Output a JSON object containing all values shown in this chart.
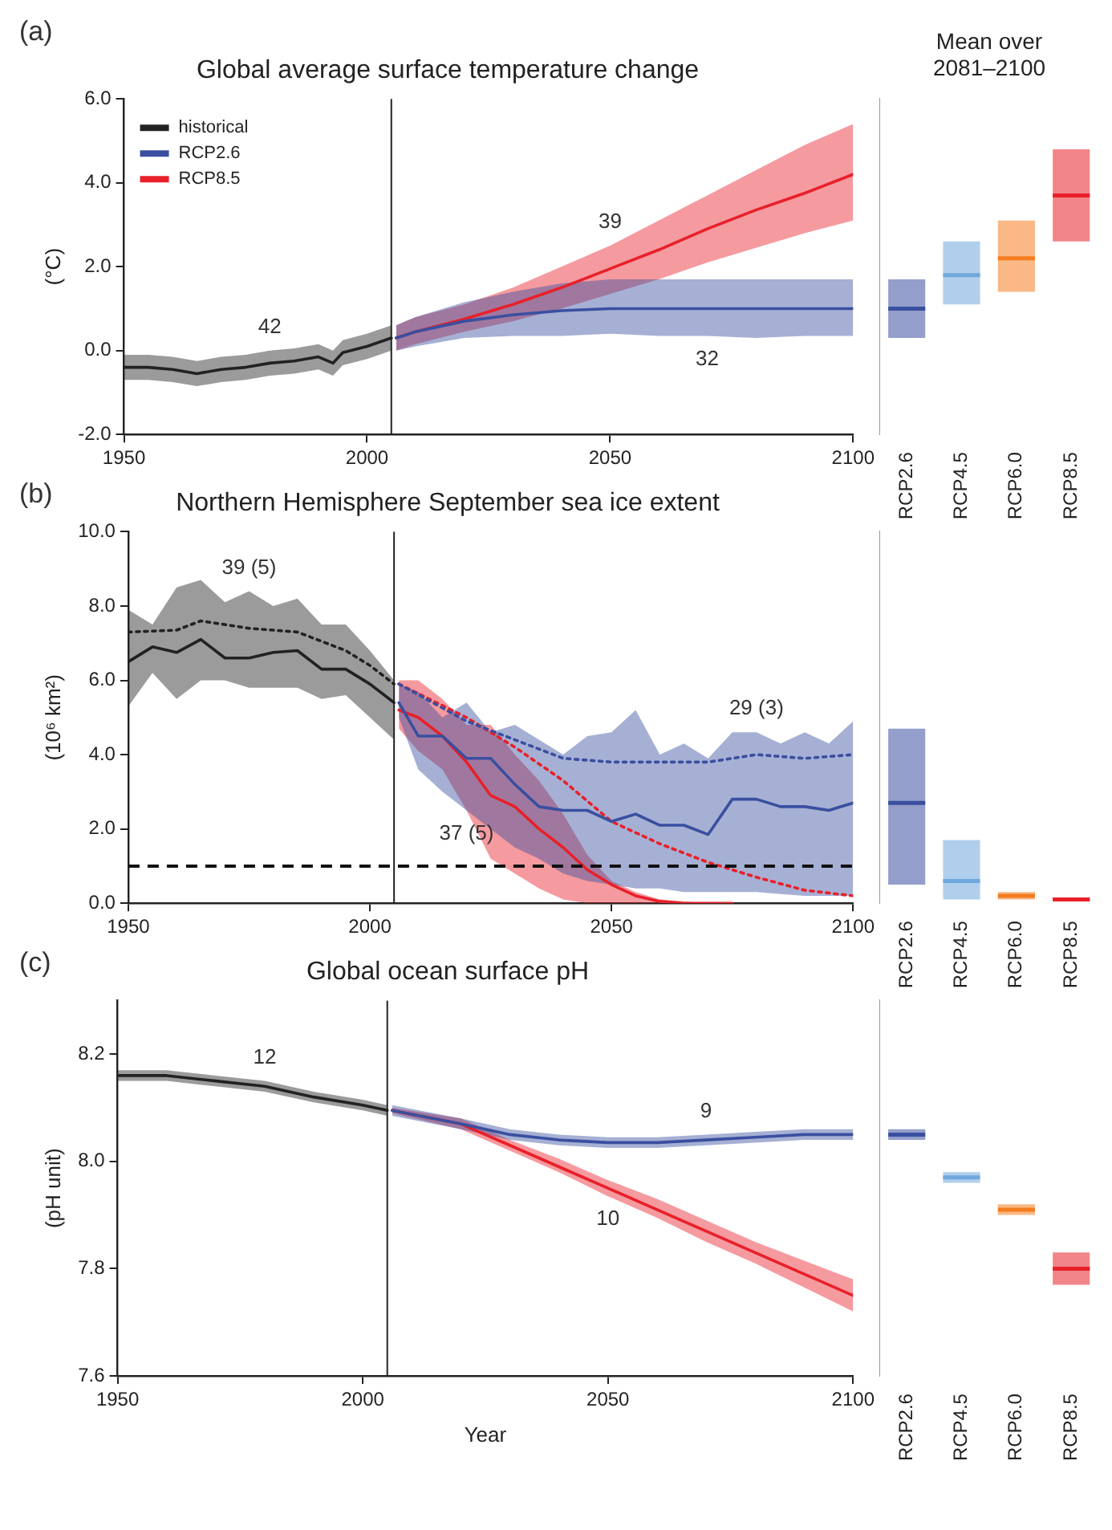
{
  "chart_data": [
    {
      "type": "line",
      "title": "Global average surface temperature change",
      "ylabel": "(°C)",
      "xlim": [
        1950,
        2100
      ],
      "xticks": [
        1950,
        2000,
        2050,
        2100
      ],
      "ylim": [
        -2,
        6
      ],
      "yticks": [
        {
          "value": -2,
          "label": "-2.0"
        },
        {
          "value": 0,
          "label": "0.0"
        },
        {
          "value": 2,
          "label": "2.0"
        },
        {
          "value": 4,
          "label": "4.0"
        },
        {
          "value": 6,
          "label": "6.0"
        }
      ],
      "legend": "top left",
      "marker": "none",
      "ref_lines": [
        {
          "axis": "x",
          "value": 2005,
          "color": "#222222",
          "line_style": "solid"
        }
      ],
      "annotations": [
        "(a)",
        {
          "text": "42",
          "x": 1980,
          "y": 0.0
        },
        {
          "text": "39",
          "x": 2050,
          "y": 2.5
        },
        {
          "text": "32",
          "x": 2070,
          "y": 0.35
        }
      ],
      "series": [
        {
          "name": "historical",
          "color": "#222222",
          "x": [
            1950,
            1955,
            1960,
            1965,
            1970,
            1975,
            1980,
            1985,
            1990,
            1993,
            1995,
            2000,
            2005
          ],
          "values": [
            -0.4,
            -0.4,
            -0.45,
            -0.55,
            -0.45,
            -0.4,
            -0.3,
            -0.25,
            -0.15,
            -0.3,
            -0.05,
            0.1,
            0.3
          ],
          "lower": [
            -0.7,
            -0.7,
            -0.75,
            -0.85,
            -0.75,
            -0.7,
            -0.6,
            -0.55,
            -0.45,
            -0.6,
            -0.35,
            -0.2,
            0.0
          ],
          "upper": [
            -0.1,
            -0.1,
            -0.15,
            -0.25,
            -0.15,
            -0.1,
            0.0,
            0.05,
            0.15,
            0.0,
            0.25,
            0.4,
            0.6
          ]
        },
        {
          "name": "RCP2.6",
          "color": "#3a4fa0",
          "x": [
            2006,
            2010,
            2020,
            2030,
            2040,
            2050,
            2060,
            2070,
            2080,
            2090,
            2100
          ],
          "values": [
            0.3,
            0.45,
            0.7,
            0.85,
            0.95,
            1.0,
            1.0,
            1.0,
            1.0,
            1.0,
            1.0
          ],
          "lower": [
            0.0,
            0.1,
            0.3,
            0.35,
            0.35,
            0.4,
            0.35,
            0.35,
            0.3,
            0.35,
            0.35
          ],
          "upper": [
            0.6,
            0.8,
            1.15,
            1.4,
            1.6,
            1.7,
            1.7,
            1.7,
            1.7,
            1.7,
            1.7
          ]
        },
        {
          "name": "RCP8.5",
          "color": "#e8202a",
          "x": [
            2006,
            2010,
            2020,
            2030,
            2040,
            2050,
            2060,
            2070,
            2080,
            2090,
            2100
          ],
          "values": [
            0.3,
            0.45,
            0.75,
            1.1,
            1.5,
            1.95,
            2.4,
            2.9,
            3.35,
            3.75,
            4.2
          ],
          "lower": [
            0.0,
            0.15,
            0.45,
            0.7,
            1.0,
            1.35,
            1.7,
            2.1,
            2.45,
            2.8,
            3.1
          ],
          "upper": [
            0.6,
            0.8,
            1.1,
            1.5,
            2.0,
            2.5,
            3.1,
            3.7,
            4.3,
            4.9,
            5.4
          ]
        }
      ]
    },
    {
      "type": "box",
      "title": "Mean over 2081–2100",
      "categories": [
        "RCP2.6",
        "RCP4.5",
        "RCP6.0",
        "RCP8.5"
      ],
      "colors": [
        "#3a4fa0",
        "#6fa8dc",
        "#f47d20",
        "#e8202a"
      ],
      "ylim": [
        -2,
        6
      ],
      "tick_labels": "x",
      "boxes": [
        {
          "low": 0.3,
          "q1": 0.3,
          "median": 1.0,
          "q3": 1.7,
          "high": 1.7
        },
        {
          "low": 1.1,
          "q1": 1.1,
          "median": 1.8,
          "q3": 2.6,
          "high": 2.6
        },
        {
          "low": 1.4,
          "q1": 1.4,
          "median": 2.2,
          "q3": 3.1,
          "high": 3.1
        },
        {
          "low": 2.6,
          "q1": 2.6,
          "median": 3.7,
          "q3": 4.8,
          "high": 4.8
        }
      ]
    },
    {
      "type": "line",
      "title": "Northern Hemisphere September sea ice extent",
      "ylabel": "(10⁶ km²)",
      "xlim": [
        1950,
        2100
      ],
      "xticks": [
        1950,
        2000,
        2050,
        2100
      ],
      "ylim": [
        0,
        10
      ],
      "yticks": [
        {
          "value": 0,
          "label": "0.0"
        },
        {
          "value": 2,
          "label": "2.0"
        },
        {
          "value": 4,
          "label": "4.0"
        },
        {
          "value": 6,
          "label": "6.0"
        },
        {
          "value": 8,
          "label": "8.0"
        },
        {
          "value": 10,
          "label": "10.0"
        }
      ],
      "marker": "none",
      "ref_lines": [
        {
          "axis": "x",
          "value": 2005,
          "color": "#222222",
          "line_style": "solid"
        },
        {
          "axis": "y",
          "value": 1,
          "color": "#111111",
          "line_style": "dashed"
        }
      ],
      "annotations": [
        "(b)",
        {
          "text": "39 (5)",
          "x": 1975,
          "y": 8.4
        },
        {
          "text": "29 (3)",
          "x": 2080,
          "y": 4.6
        },
        {
          "text": "37 (5)",
          "x": 2020,
          "y": 2.5
        }
      ],
      "series": [
        {
          "color": "#222222",
          "x": [
            1950,
            1955,
            1960,
            1965,
            1970,
            1975,
            1980,
            1985,
            1990,
            1995,
            2000,
            2005
          ],
          "values": [
            6.5,
            6.9,
            6.75,
            7.1,
            6.6,
            6.6,
            6.75,
            6.8,
            6.3,
            6.3,
            5.9,
            5.4
          ],
          "lower": [
            5.3,
            6.2,
            5.5,
            6.0,
            6.0,
            5.8,
            5.8,
            5.8,
            5.5,
            5.6,
            5.0,
            4.4
          ],
          "upper": [
            7.9,
            7.5,
            8.5,
            8.7,
            8.1,
            8.4,
            8.0,
            8.2,
            7.5,
            7.5,
            6.8,
            6.0
          ]
        },
        {
          "color": "#3a4fa0",
          "x": [
            2006,
            2010,
            2015,
            2020,
            2025,
            2030,
            2035,
            2040,
            2045,
            2050,
            2055,
            2060,
            2065,
            2070,
            2075,
            2080,
            2085,
            2090,
            2095,
            2100
          ],
          "values": [
            5.4,
            4.5,
            4.5,
            3.9,
            3.9,
            3.2,
            2.6,
            2.5,
            2.5,
            2.2,
            2.4,
            2.1,
            2.1,
            1.85,
            2.8,
            2.8,
            2.6,
            2.6,
            2.5,
            2.7
          ],
          "lower": [
            5.0,
            3.6,
            3.0,
            2.5,
            2.0,
            1.5,
            1.2,
            0.8,
            0.6,
            0.5,
            0.4,
            0.4,
            0.3,
            0.3,
            0.3,
            0.3,
            0.25,
            0.2,
            0.2,
            0.2
          ],
          "upper": [
            5.9,
            5.7,
            5.0,
            5.4,
            4.6,
            4.8,
            4.4,
            4.0,
            4.5,
            4.6,
            5.2,
            4.0,
            4.3,
            3.9,
            4.6,
            4.6,
            4.3,
            4.6,
            4.3,
            4.9
          ]
        },
        {
          "color": "#e8202a",
          "x": [
            2006,
            2010,
            2015,
            2020,
            2025,
            2030,
            2035,
            2040,
            2045,
            2050,
            2055,
            2060,
            2065,
            2070,
            2075
          ],
          "values": [
            5.2,
            5.0,
            4.5,
            3.8,
            2.9,
            2.6,
            2.0,
            1.5,
            0.9,
            0.5,
            0.2,
            0.05,
            0.0,
            0.0,
            0.0
          ],
          "lower": [
            4.7,
            4.1,
            3.6,
            2.5,
            1.2,
            0.8,
            0.4,
            0.1,
            0.0,
            0.0,
            0.0,
            0.0,
            0.0,
            0.0,
            0.0
          ],
          "upper": [
            6.0,
            6.0,
            5.5,
            4.8,
            4.8,
            4.0,
            3.3,
            2.4,
            1.3,
            0.6,
            0.3,
            0.1,
            0.05,
            0.0,
            0.0
          ]
        },
        {
          "color": "#222222",
          "line_style": "dotted",
          "x": [
            1950,
            1960,
            1965,
            1975,
            1985,
            1995,
            2000,
            2005
          ],
          "values": [
            7.3,
            7.35,
            7.6,
            7.4,
            7.3,
            6.8,
            6.4,
            5.9
          ]
        },
        {
          "color": "#3a4fa0",
          "line_style": "dotted",
          "x": [
            2006,
            2020,
            2030,
            2040,
            2050,
            2060,
            2070,
            2080,
            2090,
            2100
          ],
          "values": [
            5.9,
            4.9,
            4.4,
            3.9,
            3.8,
            3.8,
            3.8,
            4.0,
            3.9,
            4.0
          ]
        },
        {
          "color": "#e8202a",
          "line_style": "dotted",
          "x": [
            2006,
            2020,
            2030,
            2040,
            2050,
            2060,
            2070,
            2080,
            2090,
            2100
          ],
          "values": [
            5.9,
            5.0,
            4.2,
            3.3,
            2.2,
            1.6,
            1.1,
            0.7,
            0.35,
            0.2
          ]
        }
      ]
    },
    {
      "type": "box",
      "categories": [
        "RCP2.6",
        "RCP4.5",
        "RCP6.0",
        "RCP8.5"
      ],
      "colors": [
        "#3a4fa0",
        "#6fa8dc",
        "#f47d20",
        "#e8202a"
      ],
      "ylim": [
        0,
        10
      ],
      "tick_labels": "x",
      "boxes": [
        {
          "low": 0.5,
          "q1": 0.5,
          "median": 2.7,
          "q3": 4.7,
          "high": 4.7
        },
        {
          "low": 0.1,
          "q1": 0.1,
          "median": 0.6,
          "q3": 1.7,
          "high": 1.7
        },
        {
          "low": 0.1,
          "q1": 0.1,
          "median": 0.2,
          "q3": 0.3,
          "high": 0.3
        },
        {
          "low": 0.05,
          "q1": 0.05,
          "median": 0.1,
          "q3": 0.15,
          "high": 0.15
        }
      ]
    },
    {
      "type": "line",
      "title": "Global ocean surface pH",
      "xlabel": "Year",
      "ylabel": "(pH unit)",
      "xlim": [
        1950,
        2100
      ],
      "xticks": [
        1950,
        2000,
        2050,
        2100
      ],
      "ylim": [
        7.6,
        8.3
      ],
      "yticks": [
        7.6,
        7.8,
        {
          "value": 8.0,
          "label": "8.0"
        },
        8.2
      ],
      "marker": "none",
      "ref_lines": [
        {
          "axis": "x",
          "value": 2005,
          "color": "#222222",
          "line_style": "solid"
        }
      ],
      "annotations": [
        "(c)",
        {
          "text": "12",
          "x": 1980,
          "y": 8.15
        },
        {
          "text": "9",
          "x": 2070,
          "y": 8.05
        },
        {
          "text": "10",
          "x": 2050,
          "y": 7.935
        }
      ],
      "series": [
        {
          "color": "#222222",
          "x": [
            1950,
            1960,
            1970,
            1980,
            1990,
            2000,
            2005
          ],
          "values": [
            8.16,
            8.16,
            8.15,
            8.14,
            8.12,
            8.105,
            8.095
          ],
          "lower": [
            8.15,
            8.15,
            8.14,
            8.13,
            8.11,
            8.095,
            8.085
          ],
          "upper": [
            8.17,
            8.17,
            8.16,
            8.15,
            8.13,
            8.115,
            8.105
          ]
        },
        {
          "color": "#3a4fa0",
          "x": [
            2006,
            2020,
            2030,
            2040,
            2050,
            2060,
            2070,
            2080,
            2090,
            2100
          ],
          "values": [
            8.095,
            8.07,
            8.05,
            8.04,
            8.035,
            8.035,
            8.04,
            8.045,
            8.05,
            8.05
          ],
          "lower": [
            8.085,
            8.06,
            8.04,
            8.03,
            8.025,
            8.025,
            8.03,
            8.035,
            8.04,
            8.04
          ],
          "upper": [
            8.105,
            8.08,
            8.06,
            8.05,
            8.045,
            8.045,
            8.05,
            8.055,
            8.06,
            8.06
          ]
        },
        {
          "color": "#e8202a",
          "x": [
            2006,
            2020,
            2030,
            2040,
            2050,
            2060,
            2070,
            2080,
            2090,
            2100
          ],
          "values": [
            8.095,
            8.07,
            8.03,
            7.99,
            7.95,
            7.91,
            7.87,
            7.83,
            7.79,
            7.75
          ],
          "lower": [
            8.09,
            8.06,
            8.02,
            7.98,
            7.935,
            7.895,
            7.85,
            7.81,
            7.765,
            7.72
          ],
          "upper": [
            8.1,
            8.08,
            8.04,
            8.005,
            7.965,
            7.93,
            7.89,
            7.85,
            7.815,
            7.78
          ]
        }
      ]
    },
    {
      "type": "box",
      "categories": [
        "RCP2.6",
        "RCP4.5",
        "RCP6.0",
        "RCP8.5"
      ],
      "colors": [
        "#3a4fa0",
        "#6fa8dc",
        "#f47d20",
        "#e8202a"
      ],
      "ylim": [
        7.6,
        8.3
      ],
      "tick_labels": "x",
      "boxes": [
        {
          "low": 8.04,
          "q1": 8.04,
          "median": 8.05,
          "q3": 8.06,
          "high": 8.06
        },
        {
          "low": 7.96,
          "q1": 7.96,
          "median": 7.97,
          "q3": 7.98,
          "high": 7.98
        },
        {
          "low": 7.9,
          "q1": 7.9,
          "median": 7.91,
          "q3": 7.92,
          "high": 7.92
        },
        {
          "low": 7.77,
          "q1": 7.77,
          "median": 7.8,
          "q3": 7.83,
          "high": 7.83
        }
      ]
    }
  ]
}
